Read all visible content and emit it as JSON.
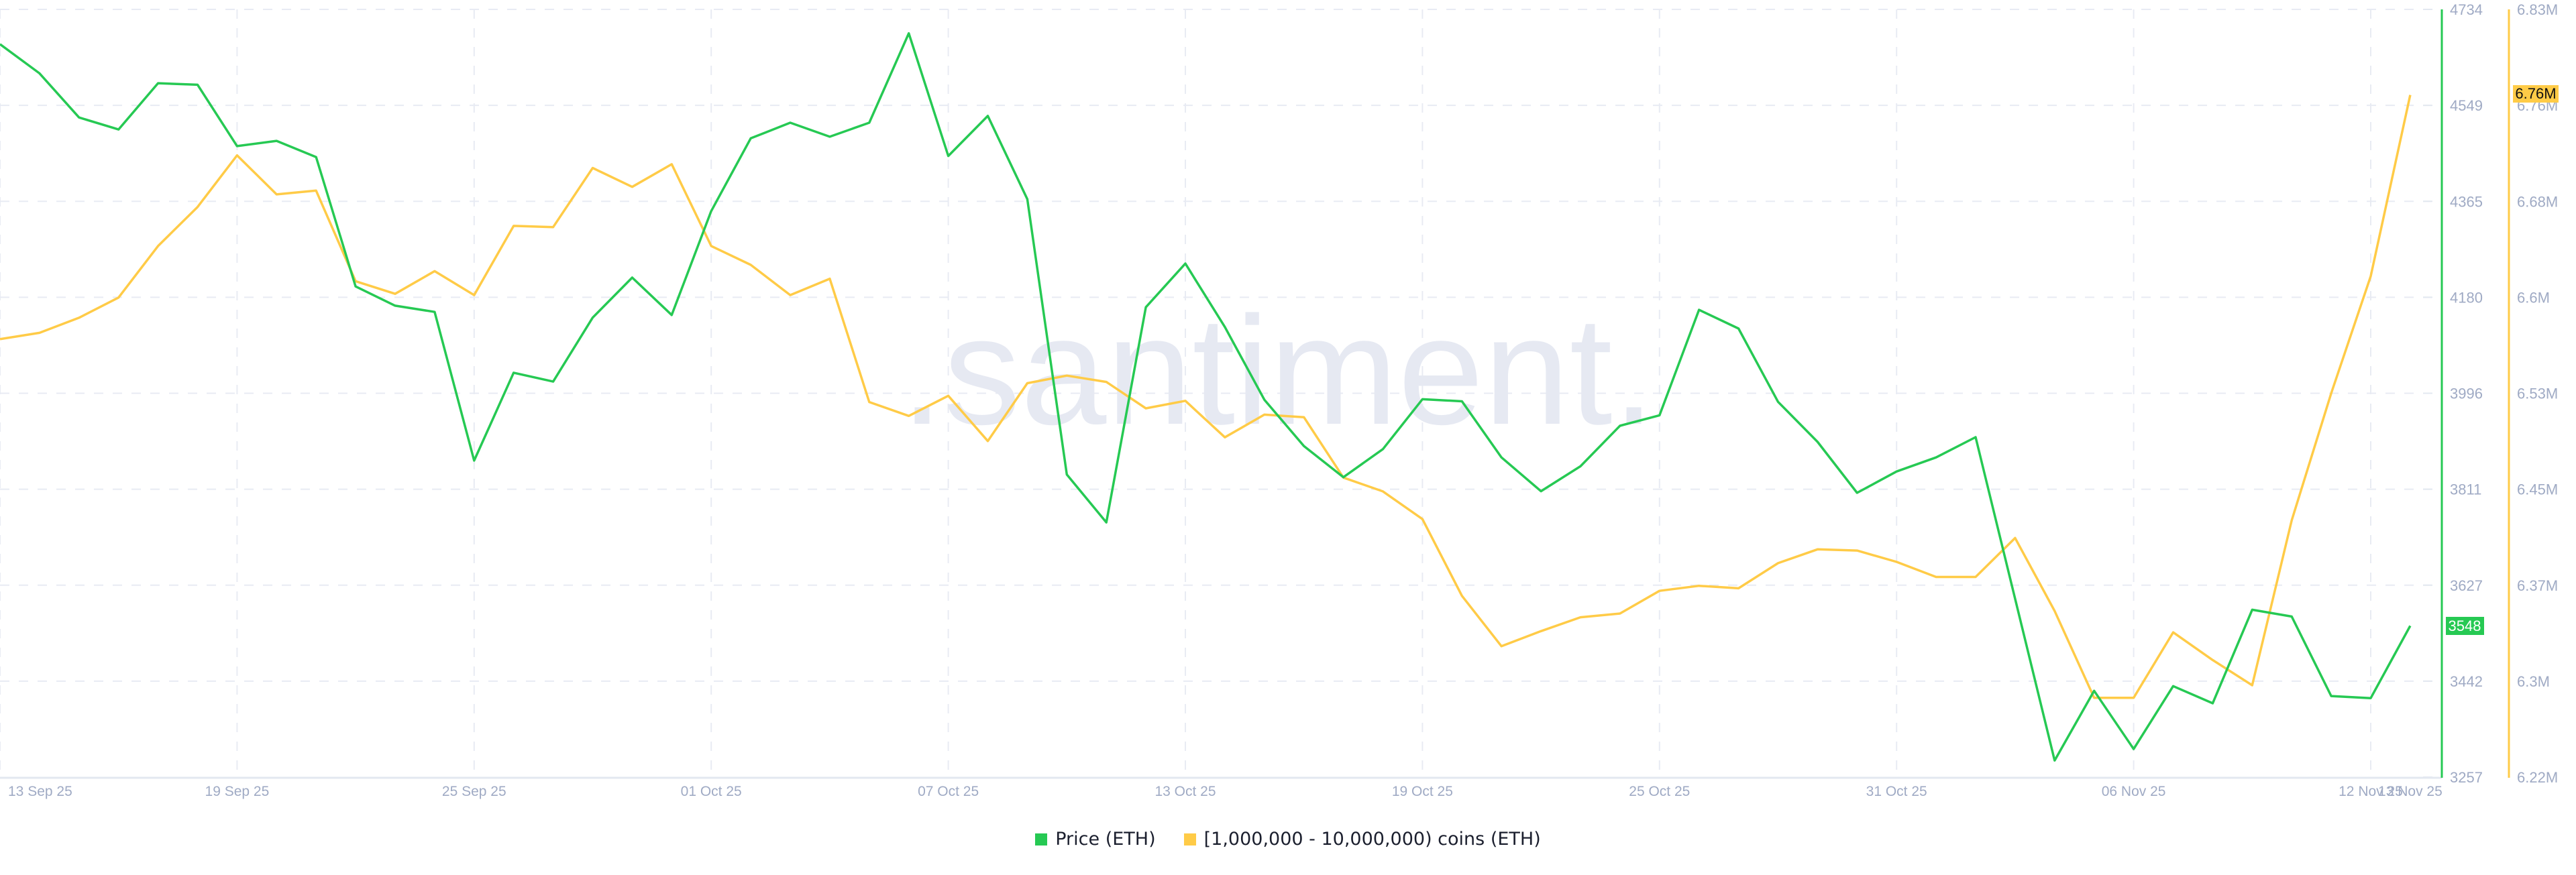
{
  "watermark": ".santiment.",
  "legend": [
    {
      "label": "Price (ETH)",
      "color": "#26c953"
    },
    {
      "label": "[1,000,000 - 10,000,000) coins (ETH)",
      "color": "#ffcb47"
    }
  ],
  "chart_data": {
    "type": "line",
    "title": "",
    "xlabel": "",
    "ylabel": "",
    "grid": true,
    "legend_position": "bottom-center",
    "x": [
      "13 Sep 25",
      "14 Sep 25",
      "15 Sep 25",
      "16 Sep 25",
      "17 Sep 25",
      "18 Sep 25",
      "19 Sep 25",
      "20 Sep 25",
      "21 Sep 25",
      "22 Sep 25",
      "23 Sep 25",
      "24 Sep 25",
      "25 Sep 25",
      "26 Sep 25",
      "27 Sep 25",
      "28 Sep 25",
      "29 Sep 25",
      "30 Sep 25",
      "01 Oct 25",
      "02 Oct 25",
      "03 Oct 25",
      "04 Oct 25",
      "05 Oct 25",
      "06 Oct 25",
      "07 Oct 25",
      "08 Oct 25",
      "09 Oct 25",
      "10 Oct 25",
      "11 Oct 25",
      "12 Oct 25",
      "13 Oct 25",
      "14 Oct 25",
      "15 Oct 25",
      "16 Oct 25",
      "17 Oct 25",
      "18 Oct 25",
      "19 Oct 25",
      "20 Oct 25",
      "21 Oct 25",
      "22 Oct 25",
      "23 Oct 25",
      "24 Oct 25",
      "25 Oct 25",
      "26 Oct 25",
      "27 Oct 25",
      "28 Oct 25",
      "29 Oct 25",
      "30 Oct 25",
      "31 Oct 25",
      "01 Nov 25",
      "02 Nov 25",
      "03 Nov 25",
      "04 Nov 25",
      "05 Nov 25",
      "06 Nov 25",
      "07 Nov 25",
      "08 Nov 25",
      "09 Nov 25",
      "10 Nov 25",
      "11 Nov 25",
      "12 Nov 25",
      "13 Nov 25"
    ],
    "x_tick_labels": [
      "13 Sep 25",
      "19 Sep 25",
      "25 Sep 25",
      "01 Oct 25",
      "07 Oct 25",
      "13 Oct 25",
      "19 Oct 25",
      "25 Oct 25",
      "31 Oct 25",
      "06 Nov 25",
      "12 Nov 25",
      "13 Nov 25"
    ],
    "series": [
      {
        "name": "Price (ETH)",
        "axis": "left-inner",
        "color": "#26c953",
        "values": [
          4667,
          4611,
          4526,
          4503,
          4592,
          4589,
          4471,
          4481,
          4450,
          4201,
          4164,
          4152,
          3866,
          4035,
          4018,
          4141,
          4218,
          4146,
          4346,
          4486,
          4516,
          4489,
          4516,
          4688,
          4452,
          4529,
          4369,
          3839,
          3747,
          4161,
          4245,
          4123,
          3983,
          3894,
          3834,
          3888,
          3984,
          3980,
          3872,
          3807,
          3855,
          3933,
          3953,
          4156,
          4120,
          3979,
          3902,
          3804,
          3845,
          3872,
          3911,
          3600,
          3289,
          3423,
          3311,
          3432,
          3399,
          3579,
          3566,
          3413,
          3409,
          3548
        ]
      },
      {
        "name": "[1,000,000 - 10,000,000) coins (ETH)",
        "axis": "right",
        "color": "#ffcb47",
        "unit": "M",
        "values": [
          6.568,
          6.573,
          6.585,
          6.601,
          6.642,
          6.673,
          6.714,
          6.683,
          6.686,
          6.614,
          6.604,
          6.622,
          6.603,
          6.658,
          6.657,
          6.704,
          6.689,
          6.707,
          6.642,
          6.627,
          6.603,
          6.616,
          6.518,
          6.507,
          6.523,
          6.487,
          6.533,
          6.539,
          6.534,
          6.513,
          6.519,
          6.49,
          6.508,
          6.506,
          6.458,
          6.447,
          6.425,
          6.364,
          6.324,
          6.336,
          6.347,
          6.35,
          6.368,
          6.372,
          6.37,
          6.39,
          6.401,
          6.4,
          6.391,
          6.379,
          6.379,
          6.41,
          6.352,
          6.283,
          6.283,
          6.335,
          6.313,
          6.293,
          6.424,
          6.525,
          6.618,
          6.762
        ]
      }
    ],
    "y_axes": {
      "price": {
        "ticks": [
          "4734",
          "4549",
          "4365",
          "4180",
          "3996",
          "3811",
          "3627",
          "3442",
          "3257"
        ],
        "range": [
          3257,
          4734
        ],
        "current_label": "3548"
      },
      "holders": {
        "ticks": [
          "6.83M",
          "6.76M",
          "6.68M",
          "6.6M",
          "6.53M",
          "6.45M",
          "6.37M",
          "6.3M",
          "6.22M"
        ],
        "range": [
          6.22,
          6.83
        ],
        "current_label": "6.76M"
      }
    }
  }
}
